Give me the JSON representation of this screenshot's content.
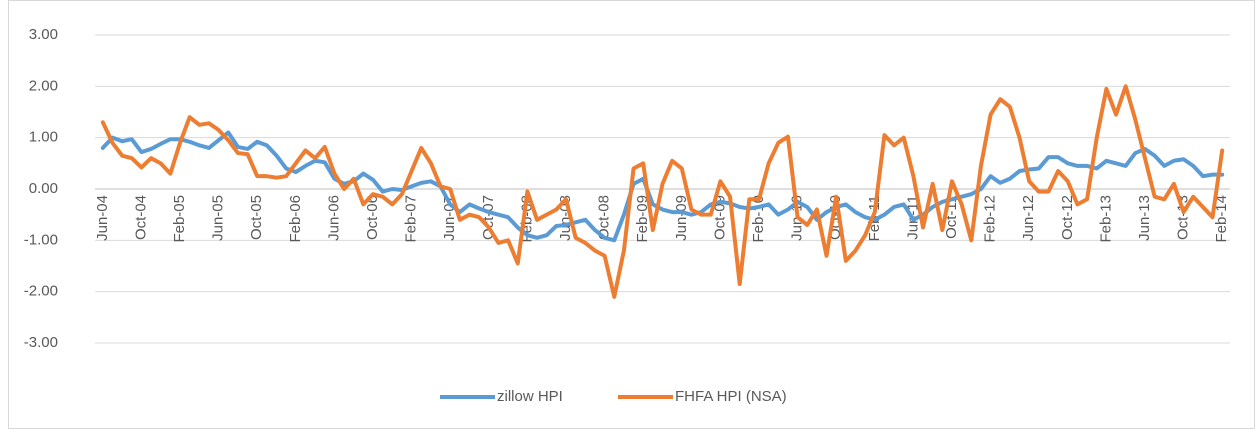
{
  "chart_data": {
    "type": "line",
    "categories": [
      "Jun-04",
      null,
      null,
      null,
      "Oct-04",
      null,
      null,
      null,
      "Feb-05",
      null,
      null,
      null,
      "Jun-05",
      null,
      null,
      null,
      "Oct-05",
      null,
      null,
      null,
      "Feb-06",
      null,
      null,
      null,
      "Jun-06",
      null,
      null,
      null,
      "Oct-06",
      null,
      null,
      null,
      "Feb-07",
      null,
      null,
      null,
      "Jun-07",
      null,
      null,
      null,
      "Oct-07",
      null,
      null,
      null,
      "Feb-08",
      null,
      null,
      null,
      "Jun-08",
      null,
      null,
      null,
      "Oct-08",
      null,
      null,
      null,
      "Feb-09",
      null,
      null,
      null,
      "Jun-09",
      null,
      null,
      null,
      "Oct-09",
      null,
      null,
      null,
      "Feb-10",
      null,
      null,
      null,
      "Jun-10",
      null,
      null,
      null,
      "Oct-10",
      null,
      null,
      null,
      "Feb-11",
      null,
      null,
      null,
      "Jun-11",
      null,
      null,
      null,
      "Oct-11",
      null,
      null,
      null,
      "Feb-12",
      null,
      null,
      null,
      "Jun-12",
      null,
      null,
      null,
      "Oct-12",
      null,
      null,
      null,
      "Feb-13",
      null,
      null,
      null,
      "Jun-13",
      null,
      null,
      null,
      "Oct-13",
      null,
      null,
      null,
      "Feb-14"
    ],
    "series": [
      {
        "name": "zillow HPI",
        "color": "#5b9bd5",
        "values": [
          0.8,
          1.0,
          0.93,
          0.97,
          0.72,
          0.78,
          0.88,
          0.97,
          0.97,
          0.92,
          0.85,
          0.8,
          0.95,
          1.1,
          0.82,
          0.78,
          0.92,
          0.85,
          0.65,
          0.4,
          0.33,
          0.45,
          0.55,
          0.52,
          0.2,
          0.1,
          0.15,
          0.3,
          0.18,
          -0.05,
          0.0,
          -0.02,
          0.05,
          0.12,
          0.15,
          0.05,
          -0.3,
          -0.45,
          -0.3,
          -0.38,
          -0.45,
          -0.5,
          -0.55,
          -0.75,
          -0.9,
          -0.95,
          -0.9,
          -0.72,
          -0.7,
          -0.65,
          -0.6,
          -0.8,
          -0.95,
          -1.0,
          -0.5,
          0.1,
          0.2,
          -0.3,
          -0.4,
          -0.45,
          -0.45,
          -0.5,
          -0.45,
          -0.3,
          -0.25,
          -0.28,
          -0.35,
          -0.38,
          -0.35,
          -0.3,
          -0.5,
          -0.4,
          -0.25,
          -0.35,
          -0.6,
          -0.45,
          -0.35,
          -0.3,
          -0.45,
          -0.55,
          -0.6,
          -0.5,
          -0.35,
          -0.3,
          -0.6,
          -0.5,
          -0.35,
          -0.25,
          -0.2,
          -0.15,
          -0.1,
          0.0,
          0.25,
          0.12,
          0.2,
          0.35,
          0.38,
          0.4,
          0.62,
          0.62,
          0.5,
          0.45,
          0.45,
          0.4,
          0.55,
          0.5,
          0.45,
          0.7,
          0.78,
          0.65,
          0.45,
          0.55,
          0.58,
          0.45,
          0.25,
          0.28,
          0.28
        ]
      },
      {
        "name": "FHFA HPI (NSA)",
        "color": "#ed7d31",
        "values": [
          1.3,
          0.9,
          0.65,
          0.6,
          0.42,
          0.6,
          0.5,
          0.3,
          0.9,
          1.4,
          1.25,
          1.28,
          1.15,
          0.95,
          0.7,
          0.68,
          0.25,
          0.25,
          0.22,
          0.25,
          0.5,
          0.75,
          0.6,
          0.82,
          0.3,
          0.0,
          0.2,
          -0.3,
          -0.1,
          -0.15,
          -0.3,
          -0.1,
          0.35,
          0.8,
          0.5,
          0.05,
          0.0,
          -0.6,
          -0.5,
          -0.55,
          -0.75,
          -1.05,
          -1.0,
          -1.45,
          -0.05,
          -0.6,
          -0.5,
          -0.4,
          -0.2,
          -0.95,
          -1.05,
          -1.2,
          -1.3,
          -2.1,
          -1.2,
          0.4,
          0.5,
          -0.8,
          0.1,
          0.55,
          0.4,
          -0.4,
          -0.5,
          -0.5,
          0.15,
          -0.15,
          -1.85,
          -0.2,
          -0.2,
          0.5,
          0.9,
          1.02,
          -0.55,
          -0.7,
          -0.4,
          -1.3,
          -0.15,
          -1.4,
          -1.2,
          -0.9,
          -0.45,
          1.05,
          0.85,
          1.0,
          0.25,
          -0.75,
          0.1,
          -0.8,
          0.15,
          -0.3,
          -1.0,
          0.45,
          1.45,
          1.75,
          1.6,
          1.0,
          0.15,
          -0.05,
          -0.05,
          0.35,
          0.15,
          -0.3,
          -0.2,
          1.0,
          1.95,
          1.45,
          2.0,
          1.35,
          0.6,
          -0.15,
          -0.2,
          0.1,
          -0.45,
          -0.15,
          -0.35,
          -0.55,
          0.75
        ]
      }
    ],
    "ylim": [
      -3,
      3
    ],
    "yticks": [
      {
        "value": -3,
        "label": "-3.00"
      },
      {
        "value": -2,
        "label": "-2.00"
      },
      {
        "value": -1,
        "label": "-1.00"
      },
      {
        "value": 0,
        "label": "0.00"
      },
      {
        "value": 1,
        "label": "1.00"
      },
      {
        "value": 2,
        "label": "2.00"
      },
      {
        "value": 3,
        "label": "3.00"
      }
    ],
    "grid": true,
    "legend": "bottom"
  }
}
